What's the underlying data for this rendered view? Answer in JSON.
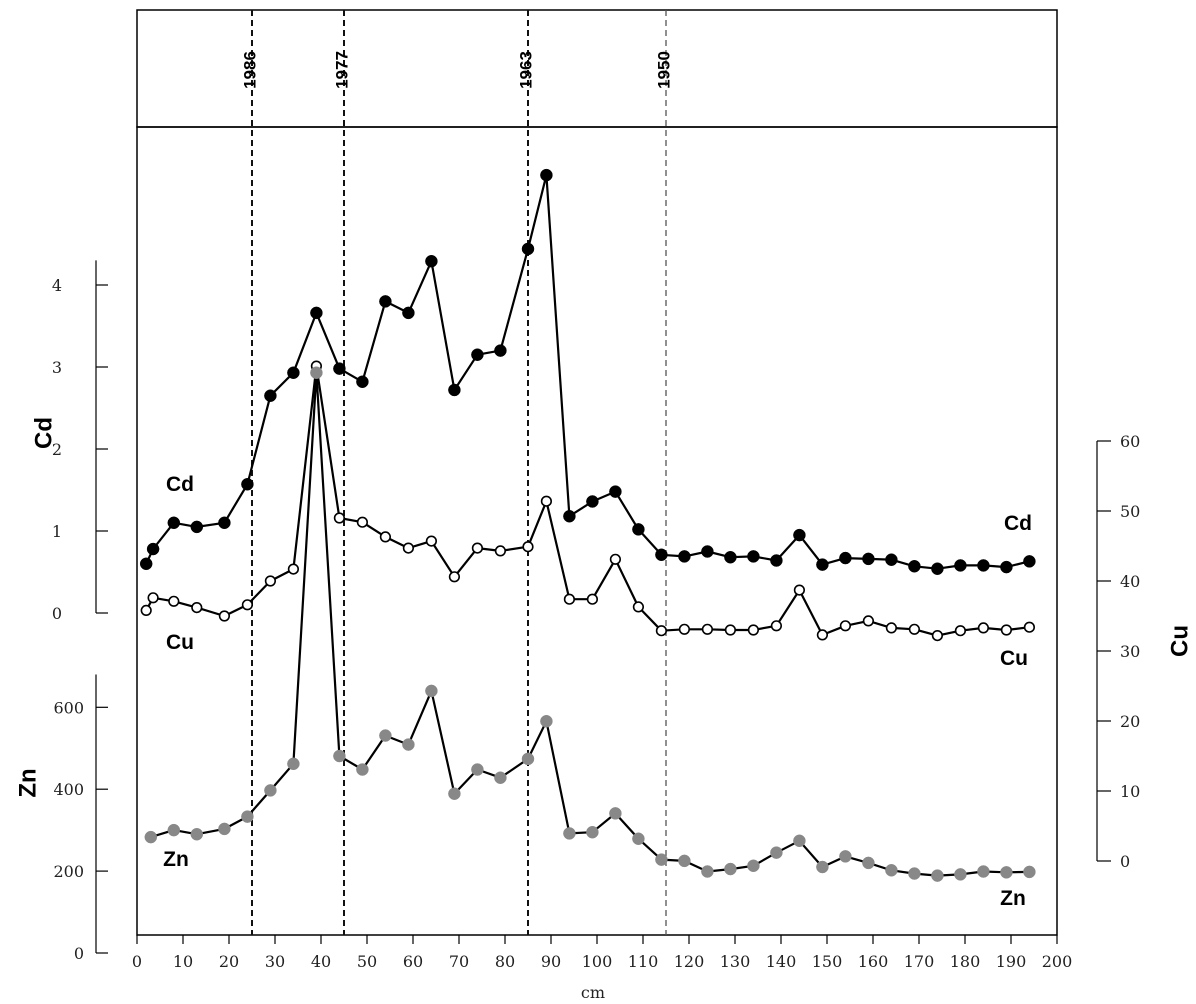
{
  "chart_data": {
    "type": "line",
    "x_axis": {
      "label": "cm",
      "range": [
        0,
        200
      ],
      "ticks": [
        0,
        10,
        20,
        30,
        40,
        50,
        60,
        70,
        80,
        90,
        100,
        110,
        120,
        130,
        140,
        150,
        160,
        170,
        180,
        190,
        200
      ]
    },
    "date_markers": [
      {
        "label": "1986",
        "depth": 25
      },
      {
        "label": "1977",
        "depth": 45
      },
      {
        "label": "1963",
        "depth": 85
      },
      {
        "label": "1950",
        "depth": 115
      }
    ],
    "cd_axis": {
      "label": "Cd",
      "range": [
        0,
        4.3
      ],
      "ticks": [
        0,
        1,
        2,
        3,
        4
      ]
    },
    "zn_axis": {
      "label": "Zn",
      "range": [
        0,
        680
      ],
      "ticks": [
        0,
        200,
        400,
        600
      ]
    },
    "cu_axis": {
      "label": "Cu",
      "range": [
        0,
        60
      ],
      "ticks": [
        0,
        10,
        20,
        30,
        40,
        50,
        60
      ]
    },
    "series": [
      {
        "name": "Cd",
        "label_left": "Cd",
        "label_right": "Cd",
        "color": "#000000",
        "marker": "filled",
        "axis": "left-cd",
        "x": [
          2,
          3.5,
          8,
          13,
          19,
          24,
          29,
          34,
          39,
          44,
          49,
          54,
          59,
          64,
          69,
          74,
          79,
          85,
          89,
          94,
          99,
          104,
          109,
          114,
          119,
          124,
          129,
          134,
          139,
          144,
          149,
          154,
          159,
          164,
          169,
          174,
          179,
          184,
          189,
          194
        ],
        "values": [
          0.6,
          0.78,
          1.1,
          1.05,
          1.1,
          1.57,
          2.65,
          2.93,
          3.66,
          2.98,
          2.82,
          3.8,
          3.66,
          4.29,
          2.72,
          3.15,
          3.2,
          4.44,
          5.34,
          1.18,
          1.36,
          1.48,
          1.02,
          0.71,
          0.69,
          0.75,
          0.68,
          0.69,
          0.64,
          0.95,
          0.59,
          0.67,
          0.66,
          0.65,
          0.57,
          0.54,
          0.58,
          0.58,
          0.56,
          0.63
        ]
      },
      {
        "name": "Cu",
        "label_left": "Cu",
        "label_right": "Cu",
        "color": "#000000",
        "marker": "open",
        "axis": "right-cu",
        "x": [
          2,
          3.5,
          8,
          13,
          19,
          24,
          29,
          34,
          39,
          44,
          49,
          54,
          59,
          64,
          69,
          74,
          79,
          85,
          89,
          94,
          99,
          104,
          109,
          114,
          119,
          124,
          129,
          134,
          139,
          144,
          149,
          154,
          159,
          164,
          169,
          174,
          179,
          184,
          189,
          194
        ],
        "values": [
          35.8,
          37.6,
          37.1,
          36.2,
          35.0,
          36.6,
          40.0,
          41.7,
          70.7,
          49.0,
          48.4,
          46.3,
          44.7,
          45.7,
          40.6,
          44.7,
          44.3,
          44.9,
          51.4,
          37.4,
          37.4,
          43.1,
          36.3,
          32.9,
          33.1,
          33.1,
          33.0,
          33.0,
          33.6,
          38.7,
          32.3,
          33.6,
          34.3,
          33.3,
          33.1,
          32.2,
          32.9,
          33.3,
          33.0,
          33.4
        ]
      },
      {
        "name": "Zn",
        "label_left": "Zn",
        "label_right": "Zn",
        "color": "#888888",
        "marker": "filled",
        "axis": "left-zn",
        "x": [
          3,
          8,
          13,
          19,
          24,
          29,
          34,
          39,
          44,
          49,
          54,
          59,
          64,
          69,
          74,
          79,
          85,
          89,
          94,
          99,
          104,
          109,
          114,
          119,
          124,
          129,
          134,
          139,
          144,
          149,
          154,
          159,
          164,
          169,
          174,
          179,
          184,
          189,
          194
        ],
        "values": [
          283,
          300,
          290,
          303,
          333,
          397,
          462,
          1417,
          481,
          448,
          531,
          509,
          640,
          389,
          448,
          428,
          474,
          566,
          292,
          295,
          341,
          279,
          228,
          225,
          199,
          205,
          213,
          245,
          274,
          210,
          236,
          220,
          202,
          194,
          189,
          192,
          199,
          197,
          198
        ]
      }
    ]
  }
}
